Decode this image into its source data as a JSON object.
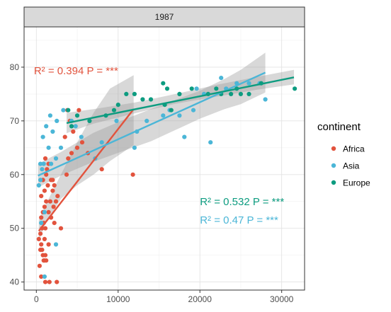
{
  "chart_data": {
    "type": "scatter",
    "facet": "1987",
    "xlabel": "",
    "ylabel": "",
    "xlim": [
      -1500,
      32800
    ],
    "ylim": [
      38.5,
      87.5
    ],
    "x_ticks": [
      0,
      10000,
      20000,
      30000
    ],
    "y_ticks": [
      40,
      50,
      60,
      70,
      80
    ],
    "grid": true,
    "legend": {
      "title": "continent",
      "position": "right",
      "entries": [
        {
          "label": "Africa",
          "color": "#E2533D"
        },
        {
          "label": "Asia",
          "color": "#4BB6D7"
        },
        {
          "label": "Europe",
          "color": "#0D9C80"
        }
      ]
    },
    "series": [
      {
        "name": "Africa",
        "color": "#E2533D",
        "fit": {
          "x": [
            300,
            11900
          ],
          "y": [
            49.5,
            72.2
          ]
        },
        "ribbon": {
          "x": [
            300,
            1000,
            3000,
            5000,
            7000,
            9000,
            11900
          ],
          "upper": [
            51.5,
            54.0,
            60.0,
            66.0,
            71.5,
            76.0,
            78.5
          ],
          "lower": [
            47.5,
            50.5,
            55.5,
            58.0,
            60.0,
            62.5,
            65.5
          ]
        },
        "annotation": "R² = 0.394 P = ***",
        "annotation_pos": [
          -300,
          78.7
        ],
        "points": [
          [
            400,
            43
          ],
          [
            500,
            46
          ],
          [
            600,
            47
          ],
          [
            700,
            46
          ],
          [
            800,
            45
          ],
          [
            900,
            44
          ],
          [
            1000,
            44
          ],
          [
            1100,
            45
          ],
          [
            1200,
            44
          ],
          [
            300,
            48
          ],
          [
            500,
            49
          ],
          [
            700,
            50
          ],
          [
            900,
            51
          ],
          [
            600,
            52
          ],
          [
            800,
            53
          ],
          [
            1000,
            54
          ],
          [
            1200,
            55
          ],
          [
            600,
            56
          ],
          [
            1000,
            57
          ],
          [
            1400,
            58
          ],
          [
            800,
            59
          ],
          [
            1200,
            60
          ],
          [
            1800,
            59
          ],
          [
            2200,
            58
          ],
          [
            1100,
            40
          ],
          [
            1600,
            40
          ],
          [
            2500,
            40
          ],
          [
            1500,
            47
          ],
          [
            1000,
            48
          ],
          [
            1100,
            50
          ],
          [
            2200,
            51
          ],
          [
            1800,
            52
          ],
          [
            1500,
            53
          ],
          [
            3000,
            50
          ],
          [
            2400,
            55
          ],
          [
            2600,
            56
          ],
          [
            2000,
            57
          ],
          [
            1300,
            61
          ],
          [
            1500,
            62
          ],
          [
            1100,
            63
          ],
          [
            3700,
            60
          ],
          [
            3500,
            67
          ],
          [
            4500,
            68
          ],
          [
            5200,
            72
          ],
          [
            4100,
            70
          ],
          [
            5600,
            66
          ],
          [
            4300,
            64
          ],
          [
            5000,
            65
          ],
          [
            6300,
            64
          ],
          [
            3800,
            72
          ],
          [
            11800,
            60
          ],
          [
            8000,
            61
          ],
          [
            3900,
            63
          ],
          [
            2000,
            59
          ],
          [
            600,
            41
          ],
          [
            1700,
            55
          ],
          [
            2100,
            54
          ]
        ]
      },
      {
        "name": "Asia",
        "color": "#4BB6D7",
        "fit": {
          "x": [
            200,
            28000
          ],
          "y": [
            59.8,
            79.0
          ]
        },
        "ribbon": {
          "x": [
            200,
            3000,
            7000,
            11000,
            14000,
            17000,
            20000,
            23000,
            25000,
            28000
          ],
          "upper": [
            62.0,
            64.2,
            67.8,
            70.4,
            72.2,
            73.9,
            75.6,
            77.8,
            79.5,
            82.7
          ],
          "lower": [
            57.6,
            59.8,
            62.4,
            64.6,
            66.2,
            68.3,
            70.4,
            72.2,
            73.1,
            75.3
          ]
        },
        "annotation": "R² = 0.47 P = ***",
        "annotation_pos": [
          20000,
          50.9
        ],
        "points": [
          [
            300,
            58
          ],
          [
            500,
            59
          ],
          [
            700,
            61
          ],
          [
            900,
            62
          ],
          [
            800,
            67
          ],
          [
            1500,
            65
          ],
          [
            1200,
            69
          ],
          [
            2000,
            68
          ],
          [
            2500,
            70
          ],
          [
            1700,
            71
          ],
          [
            1800,
            62
          ],
          [
            2400,
            63
          ],
          [
            3000,
            65
          ],
          [
            3300,
            72
          ],
          [
            4300,
            70
          ],
          [
            4800,
            69
          ],
          [
            5500,
            67
          ],
          [
            7200,
            63
          ],
          [
            8000,
            66
          ],
          [
            9800,
            70
          ],
          [
            12000,
            65
          ],
          [
            12300,
            68
          ],
          [
            13500,
            70
          ],
          [
            15500,
            71
          ],
          [
            16300,
            72
          ],
          [
            18100,
            67
          ],
          [
            19200,
            72
          ],
          [
            21300,
            66
          ],
          [
            22600,
            78
          ],
          [
            24500,
            77
          ],
          [
            26000,
            77
          ],
          [
            27300,
            77
          ],
          [
            28000,
            74
          ],
          [
            17500,
            71
          ],
          [
            19600,
            76
          ],
          [
            20500,
            75
          ],
          [
            23200,
            76
          ],
          [
            1000,
            41
          ],
          [
            500,
            62
          ],
          [
            1000,
            53
          ],
          [
            600,
            51
          ],
          [
            2400,
            47
          ]
        ]
      },
      {
        "name": "Europe",
        "color": "#0D9C80",
        "fit": {
          "x": [
            3700,
            31500
          ],
          "y": [
            69.6,
            78.1
          ]
        },
        "ribbon": {
          "x": [
            3700,
            7000,
            12000,
            17000,
            22000,
            27000,
            31500
          ],
          "upper": [
            71.5,
            72.2,
            73.4,
            75.0,
            76.7,
            78.2,
            79.5
          ],
          "lower": [
            67.7,
            69.5,
            71.4,
            73.2,
            74.5,
            75.8,
            76.8
          ]
        },
        "annotation": "R² = 0.532 P = ***",
        "annotation_pos": [
          20000,
          54.3
        ],
        "points": [
          [
            3900,
            72
          ],
          [
            4300,
            69
          ],
          [
            5000,
            71
          ],
          [
            6500,
            70
          ],
          [
            8500,
            71
          ],
          [
            9500,
            72
          ],
          [
            10000,
            73
          ],
          [
            11000,
            75
          ],
          [
            12000,
            75
          ],
          [
            13000,
            74
          ],
          [
            14000,
            74
          ],
          [
            15500,
            77
          ],
          [
            15700,
            73
          ],
          [
            16000,
            76
          ],
          [
            16500,
            72
          ],
          [
            17500,
            75
          ],
          [
            19000,
            76
          ],
          [
            21000,
            75
          ],
          [
            22000,
            76
          ],
          [
            22600,
            75
          ],
          [
            23800,
            75
          ],
          [
            24500,
            76
          ],
          [
            25000,
            75
          ],
          [
            26000,
            75
          ],
          [
            27500,
            77
          ],
          [
            31600,
            76
          ]
        ]
      }
    ]
  }
}
